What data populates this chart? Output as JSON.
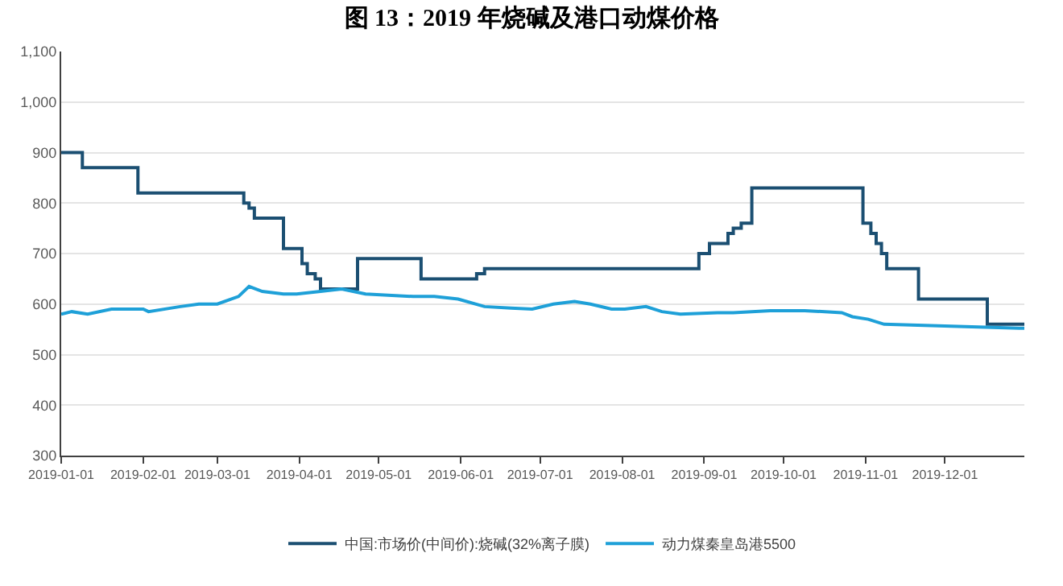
{
  "chart_data": {
    "type": "line",
    "title": "图 13：2019 年烧碱及港口动煤价格",
    "xlim": [
      "2019-01-01",
      "2019-12-31"
    ],
    "xticks": [
      "2019-01-01",
      "2019-02-01",
      "2019-03-01",
      "2019-04-01",
      "2019-05-01",
      "2019-06-01",
      "2019-07-01",
      "2019-08-01",
      "2019-09-01",
      "2019-10-01",
      "2019-11-01",
      "2019-12-01"
    ],
    "ylim": [
      300,
      1100
    ],
    "yticks": [
      300,
      400,
      500,
      600,
      700,
      800,
      900,
      {
        "value": 1000,
        "label": "1,000"
      },
      {
        "value": 1100,
        "label": "1,100"
      }
    ],
    "grid": "y",
    "legend": "bottom",
    "marker": "none",
    "line_style": "solid",
    "series": [
      {
        "name": "中国:市场价(中间价):烧碱(32%离子膜)",
        "type": "step",
        "color": "#1b4f72",
        "x": [
          "2019-01-01",
          "2019-01-09",
          "2019-01-30",
          "2019-03-11",
          "2019-03-13",
          "2019-03-15",
          "2019-03-26",
          "2019-04-02",
          "2019-04-04",
          "2019-04-07",
          "2019-04-09",
          "2019-04-23",
          "2019-05-17",
          "2019-06-07",
          "2019-06-10",
          "2019-08-30",
          "2019-09-03",
          "2019-09-10",
          "2019-09-12",
          "2019-09-15",
          "2019-09-19",
          "2019-10-31",
          "2019-11-03",
          "2019-11-05",
          "2019-11-07",
          "2019-11-09",
          "2019-11-21",
          "2019-12-17",
          "2019-12-31"
        ],
        "values": [
          900,
          870,
          820,
          800,
          790,
          770,
          710,
          680,
          660,
          650,
          630,
          690,
          650,
          660,
          670,
          700,
          720,
          740,
          750,
          760,
          830,
          760,
          740,
          720,
          700,
          670,
          610,
          560,
          560
        ]
      },
      {
        "name": "动力煤秦皇岛港5500",
        "color": "#1ea0d8",
        "x": [
          "2019-01-01",
          "2019-01-05",
          "2019-01-11",
          "2019-01-20",
          "2019-02-01",
          "2019-02-03",
          "2019-02-15",
          "2019-02-22",
          "2019-03-01",
          "2019-03-09",
          "2019-03-13",
          "2019-03-18",
          "2019-03-26",
          "2019-03-31",
          "2019-04-09",
          "2019-04-17",
          "2019-04-26",
          "2019-05-14",
          "2019-05-22",
          "2019-05-31",
          "2019-06-10",
          "2019-06-20",
          "2019-06-28",
          "2019-07-06",
          "2019-07-14",
          "2019-07-20",
          "2019-07-28",
          "2019-08-02",
          "2019-08-10",
          "2019-08-16",
          "2019-08-23",
          "2019-09-06",
          "2019-09-12",
          "2019-09-26",
          "2019-10-09",
          "2019-10-23",
          "2019-10-27",
          "2019-11-02",
          "2019-11-08",
          "2019-12-29",
          "2019-12-31"
        ],
        "values": [
          580,
          585,
          580,
          590,
          590,
          585,
          595,
          600,
          600,
          615,
          635,
          625,
          620,
          620,
          625,
          630,
          620,
          615,
          615,
          610,
          595,
          592,
          590,
          600,
          605,
          600,
          590,
          590,
          595,
          585,
          580,
          583,
          583,
          587,
          587,
          583,
          575,
          570,
          560,
          552,
          552
        ]
      }
    ]
  }
}
